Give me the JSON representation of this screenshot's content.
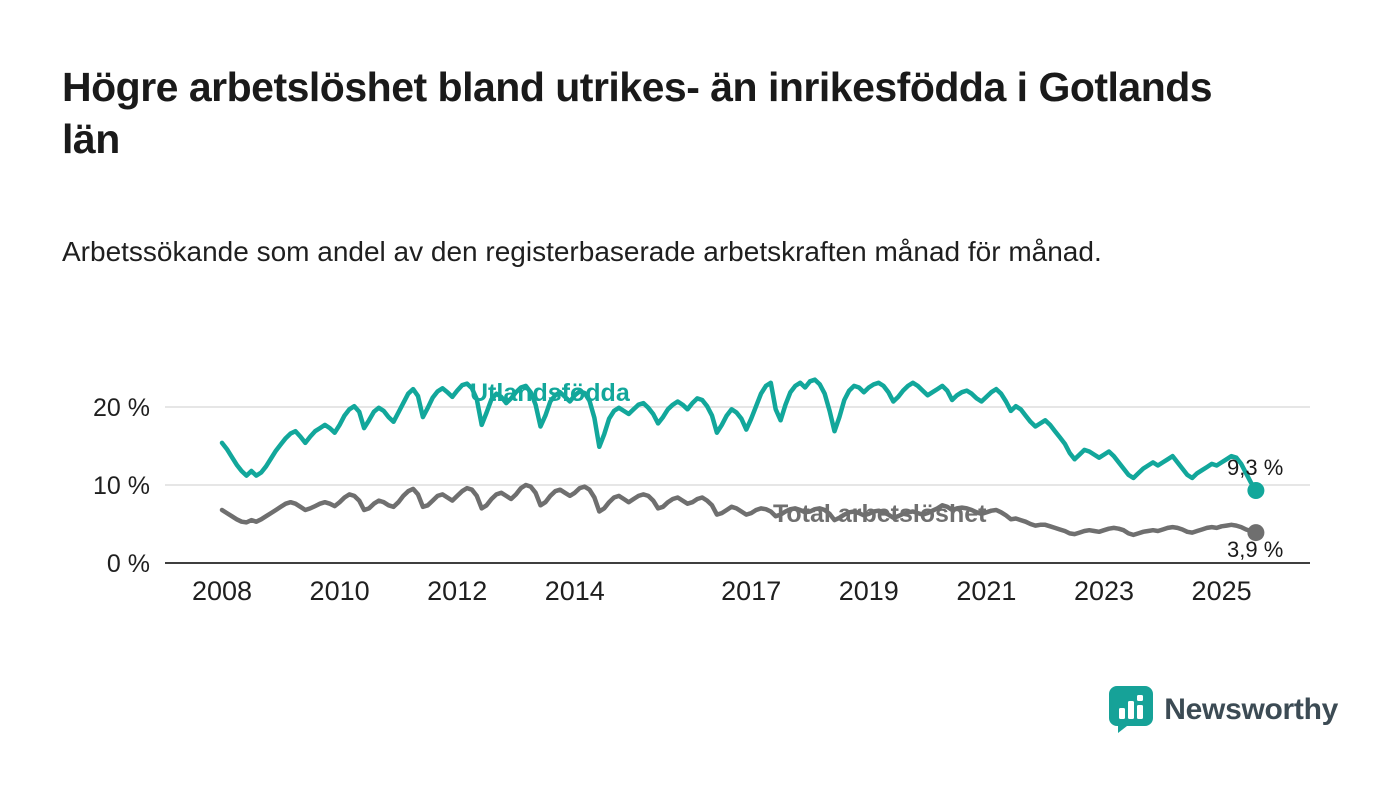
{
  "title": "Högre arbetslöshet bland utrikes- än inrikesfödda i Gotlands län",
  "subtitle": "Arbetssökande som andel av den registerbaserade arbetskraften månad för månad.",
  "branding": {
    "name": "Newsworthy",
    "icon_color": "#16a298",
    "text_color": "#3c4b54"
  },
  "chart_data": {
    "type": "line",
    "title": "Högre arbetslöshet bland utrikes- än inrikesfödda i Gotlands län",
    "xlabel": "",
    "ylabel": "Arbetssökande som andel av den registerbaserade arbetskraften",
    "frequency": "monthly",
    "x_start": "2008-01",
    "x_end": "2025-08",
    "ylim": [
      0,
      25
    ],
    "grid": "horizontal",
    "yticks": [
      {
        "value": 0,
        "label": "0 %"
      },
      {
        "value": 10,
        "label": "10 %"
      },
      {
        "value": 20,
        "label": "20 %"
      }
    ],
    "xticks": [
      {
        "value": 2008,
        "label": "2008"
      },
      {
        "value": 2010,
        "label": "2010"
      },
      {
        "value": 2012,
        "label": "2012"
      },
      {
        "value": 2014,
        "label": "2014"
      },
      {
        "value": 2017,
        "label": "2017"
      },
      {
        "value": 2019,
        "label": "2019"
      },
      {
        "value": 2021,
        "label": "2021"
      },
      {
        "value": 2023,
        "label": "2023"
      },
      {
        "value": 2025,
        "label": "2025"
      }
    ],
    "series": [
      {
        "name": "Utlandsfödda",
        "color": "#12a79b",
        "end_label": "9,3 %",
        "end_value": 9.3,
        "values": [
          15.4,
          14.6,
          13.6,
          12.6,
          11.8,
          11.2,
          11.8,
          11.2,
          11.6,
          12.4,
          13.4,
          14.4,
          15.2,
          16.0,
          16.6,
          16.9,
          16.2,
          15.4,
          16.2,
          16.9,
          17.3,
          17.7,
          17.3,
          16.7,
          17.7,
          18.9,
          19.7,
          20.1,
          19.4,
          17.3,
          18.3,
          19.4,
          19.9,
          19.5,
          18.7,
          18.1,
          19.3,
          20.5,
          21.7,
          22.3,
          21.4,
          18.7,
          19.9,
          21.2,
          22.0,
          22.4,
          21.9,
          21.3,
          22.1,
          22.8,
          23.0,
          22.4,
          21.0,
          17.7,
          19.3,
          21.0,
          21.7,
          21.3,
          20.5,
          21.1,
          21.9,
          22.5,
          22.7,
          21.9,
          20.3,
          17.5,
          18.9,
          20.7,
          21.5,
          21.9,
          21.3,
          20.7,
          21.5,
          22.0,
          21.8,
          20.8,
          18.6,
          14.9,
          16.5,
          18.5,
          19.5,
          19.9,
          19.5,
          19.1,
          19.7,
          20.3,
          20.5,
          19.9,
          19.1,
          17.9,
          18.7,
          19.7,
          20.3,
          20.7,
          20.3,
          19.7,
          20.5,
          21.1,
          20.9,
          20.1,
          18.9,
          16.7,
          17.7,
          18.9,
          19.7,
          19.3,
          18.5,
          17.1,
          18.5,
          20.1,
          21.7,
          22.7,
          23.1,
          19.7,
          18.3,
          20.3,
          21.9,
          22.7,
          23.1,
          22.5,
          23.3,
          23.5,
          22.9,
          21.7,
          19.5,
          16.9,
          18.7,
          20.9,
          22.1,
          22.7,
          22.5,
          21.9,
          22.5,
          22.9,
          23.1,
          22.7,
          21.9,
          20.7,
          21.3,
          22.1,
          22.7,
          23.1,
          22.7,
          22.1,
          21.5,
          21.9,
          22.3,
          22.7,
          22.1,
          20.9,
          21.5,
          21.9,
          22.1,
          21.7,
          21.1,
          20.7,
          21.3,
          21.9,
          22.3,
          21.7,
          20.7,
          19.5,
          20.1,
          19.7,
          18.9,
          18.1,
          17.5,
          17.9,
          18.3,
          17.7,
          16.9,
          16.1,
          15.3,
          14.1,
          13.3,
          13.9,
          14.5,
          14.3,
          13.9,
          13.5,
          13.9,
          14.3,
          13.7,
          12.9,
          12.1,
          11.3,
          10.9,
          11.5,
          12.1,
          12.5,
          12.9,
          12.5,
          12.9,
          13.3,
          13.7,
          12.9,
          12.1,
          11.3,
          10.9,
          11.5,
          11.9,
          12.3,
          12.7,
          12.5,
          12.9,
          13.3,
          13.7,
          13.5,
          12.7,
          11.5,
          10.3,
          9.3
        ]
      },
      {
        "name": "Total arbetslöshet",
        "color": "#6f6f6f",
        "end_label": "3,9 %",
        "end_value": 3.9,
        "values": [
          6.8,
          6.4,
          6.0,
          5.6,
          5.3,
          5.2,
          5.5,
          5.3,
          5.6,
          6.0,
          6.4,
          6.8,
          7.2,
          7.6,
          7.8,
          7.6,
          7.2,
          6.8,
          7.0,
          7.3,
          7.6,
          7.8,
          7.6,
          7.3,
          7.8,
          8.4,
          8.8,
          8.6,
          8.0,
          6.8,
          7.0,
          7.6,
          8.0,
          7.8,
          7.4,
          7.2,
          7.8,
          8.6,
          9.2,
          9.5,
          8.8,
          7.2,
          7.4,
          8.0,
          8.6,
          8.8,
          8.4,
          8.0,
          8.6,
          9.2,
          9.6,
          9.4,
          8.6,
          7.0,
          7.4,
          8.2,
          8.8,
          9.0,
          8.6,
          8.2,
          8.8,
          9.6,
          10.0,
          9.8,
          9.0,
          7.4,
          7.8,
          8.6,
          9.2,
          9.4,
          9.0,
          8.6,
          9.0,
          9.6,
          9.8,
          9.4,
          8.4,
          6.6,
          7.0,
          7.8,
          8.4,
          8.6,
          8.2,
          7.8,
          8.2,
          8.6,
          8.8,
          8.6,
          8.0,
          7.0,
          7.2,
          7.8,
          8.2,
          8.4,
          8.0,
          7.6,
          7.8,
          8.2,
          8.4,
          8.0,
          7.4,
          6.2,
          6.4,
          6.8,
          7.2,
          7.0,
          6.6,
          6.2,
          6.4,
          6.8,
          7.0,
          6.9,
          6.6,
          6.0,
          6.2,
          6.6,
          6.9,
          7.0,
          6.8,
          6.5,
          6.6,
          6.9,
          7.0,
          6.8,
          6.3,
          5.5,
          5.8,
          6.2,
          6.5,
          6.6,
          6.4,
          6.1,
          6.3,
          6.6,
          6.7,
          6.5,
          6.2,
          5.8,
          6.0,
          6.3,
          6.5,
          6.6,
          6.4,
          6.2,
          6.4,
          6.7,
          7.0,
          7.4,
          7.2,
          6.8,
          7.0,
          7.1,
          7.0,
          6.8,
          6.5,
          6.3,
          6.5,
          6.7,
          6.8,
          6.5,
          6.1,
          5.6,
          5.7,
          5.5,
          5.3,
          5.0,
          4.8,
          4.9,
          4.9,
          4.7,
          4.5,
          4.3,
          4.1,
          3.8,
          3.7,
          3.9,
          4.1,
          4.2,
          4.1,
          4.0,
          4.2,
          4.4,
          4.5,
          4.4,
          4.2,
          3.8,
          3.6,
          3.8,
          4.0,
          4.1,
          4.2,
          4.1,
          4.3,
          4.5,
          4.6,
          4.5,
          4.3,
          4.0,
          3.9,
          4.1,
          4.3,
          4.5,
          4.6,
          4.5,
          4.7,
          4.8,
          4.9,
          4.8,
          4.6,
          4.3,
          4.1,
          3.9
        ]
      }
    ]
  }
}
